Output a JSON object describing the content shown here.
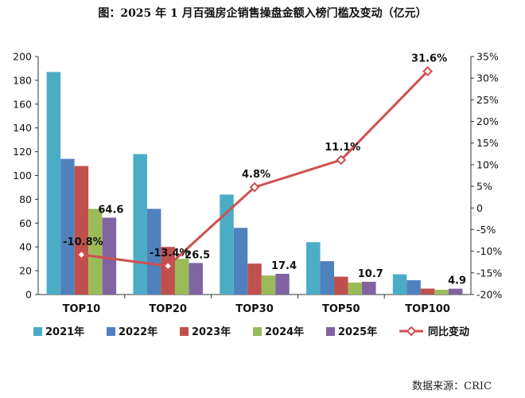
{
  "title": "图：2025 年 1 月百强房企销售操盘金额入榜门槛及变动（亿元）",
  "source": "数据来源：CRIC",
  "colors": {
    "2021年": "#4BACC6",
    "2022年": "#4F81BD",
    "2023年": "#C0504D",
    "2024年": "#9BBB59",
    "2025年": "#8064A2",
    "同比变动": "#D05050"
  },
  "chart_data": {
    "type": "bar",
    "categories": [
      "TOP10",
      "TOP20",
      "TOP30",
      "TOP50",
      "TOP100"
    ],
    "series": [
      {
        "name": "2021年",
        "values": [
          187,
          118,
          84,
          44,
          17
        ]
      },
      {
        "name": "2022年",
        "values": [
          114,
          72,
          56,
          28,
          12
        ]
      },
      {
        "name": "2023年",
        "values": [
          108,
          40,
          26,
          15,
          5
        ]
      },
      {
        "name": "2024年",
        "values": [
          72,
          30,
          16,
          10,
          4
        ]
      },
      {
        "name": "2025年",
        "values": [
          64.6,
          26.5,
          17.4,
          10.7,
          4.9
        ]
      }
    ],
    "line_series": {
      "name": "同比变动",
      "values": [
        -10.8,
        -13.4,
        4.8,
        11.1,
        31.6
      ],
      "axis": "right",
      "marker": "diamond"
    },
    "bar_labels": [
      "64.6",
      "26.5",
      "17.4",
      "10.7",
      "4.9"
    ],
    "line_labels": [
      "-10.8%",
      "-13.4%",
      "4.8%",
      "11.1%",
      "31.6%"
    ],
    "ylim": [
      0,
      200
    ],
    "y_ticks": [
      "0",
      "20",
      "40",
      "60",
      "80",
      "100",
      "120",
      "140",
      "160",
      "180",
      "200"
    ],
    "y2lim": [
      -20,
      35
    ],
    "y2_ticks": [
      "-20%",
      "-15%",
      "-10%",
      "-5%",
      "0",
      "5%",
      "10%",
      "15%",
      "20%",
      "25%",
      "30%",
      "35%"
    ],
    "legend_position": "bottom",
    "grid": false
  }
}
